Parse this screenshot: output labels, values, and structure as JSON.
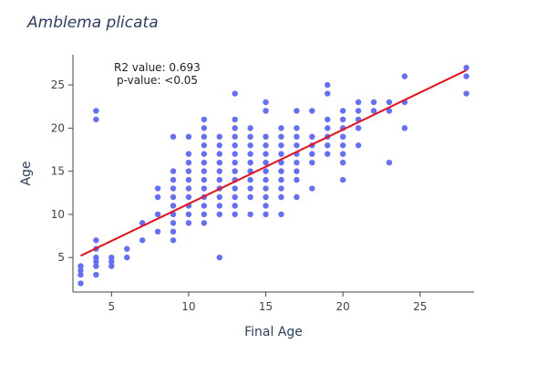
{
  "chart_data": {
    "type": "scatter",
    "title": "Amblema plicata",
    "xlabel": "Final Age",
    "ylabel": "Age",
    "xlim": [
      2.5,
      28.5
    ],
    "ylim": [
      1,
      28.5
    ],
    "xticks": [
      5,
      10,
      15,
      20,
      25
    ],
    "yticks": [
      5,
      10,
      15,
      20,
      25
    ],
    "grid": false,
    "marker_color": "#636efa",
    "annotations": [
      "R2 value: 0.693",
      "p-value: <0.05"
    ],
    "trendline": {
      "color": "#e8101a",
      "x": [
        3,
        28
      ],
      "y": [
        5.2,
        26.7
      ]
    },
    "points": [
      [
        3,
        2
      ],
      [
        3,
        3
      ],
      [
        3,
        3.5
      ],
      [
        3,
        4
      ],
      [
        4,
        3
      ],
      [
        4,
        4
      ],
      [
        4,
        4.5
      ],
      [
        4,
        5
      ],
      [
        4,
        6
      ],
      [
        4,
        7
      ],
      [
        4,
        21
      ],
      [
        4,
        22
      ],
      [
        5,
        4
      ],
      [
        5,
        4.5
      ],
      [
        5,
        5
      ],
      [
        6,
        5
      ],
      [
        6,
        6
      ],
      [
        7,
        7
      ],
      [
        7,
        9
      ],
      [
        8,
        8
      ],
      [
        8,
        10
      ],
      [
        8,
        12
      ],
      [
        8,
        13
      ],
      [
        9,
        7
      ],
      [
        9,
        8
      ],
      [
        9,
        9
      ],
      [
        9,
        10
      ],
      [
        9,
        11
      ],
      [
        9,
        12
      ],
      [
        9,
        13
      ],
      [
        9,
        14
      ],
      [
        9,
        15
      ],
      [
        9,
        19
      ],
      [
        10,
        9
      ],
      [
        10,
        10
      ],
      [
        10,
        11
      ],
      [
        10,
        12
      ],
      [
        10,
        13
      ],
      [
        10,
        14
      ],
      [
        10,
        15
      ],
      [
        10,
        16
      ],
      [
        10,
        17
      ],
      [
        10,
        19
      ],
      [
        11,
        9
      ],
      [
        11,
        10
      ],
      [
        11,
        11
      ],
      [
        11,
        12
      ],
      [
        11,
        13
      ],
      [
        11,
        14
      ],
      [
        11,
        15
      ],
      [
        11,
        16
      ],
      [
        11,
        17
      ],
      [
        11,
        18
      ],
      [
        11,
        19
      ],
      [
        11,
        20
      ],
      [
        11,
        21
      ],
      [
        12,
        5
      ],
      [
        12,
        10
      ],
      [
        12,
        11
      ],
      [
        12,
        12
      ],
      [
        12,
        13
      ],
      [
        12,
        14
      ],
      [
        12,
        15
      ],
      [
        12,
        16
      ],
      [
        12,
        17
      ],
      [
        12,
        18
      ],
      [
        12,
        19
      ],
      [
        13,
        10
      ],
      [
        13,
        11
      ],
      [
        13,
        12
      ],
      [
        13,
        13
      ],
      [
        13,
        14
      ],
      [
        13,
        15
      ],
      [
        13,
        16
      ],
      [
        13,
        17
      ],
      [
        13,
        18
      ],
      [
        13,
        19
      ],
      [
        13,
        20
      ],
      [
        13,
        21
      ],
      [
        13,
        24
      ],
      [
        14,
        10
      ],
      [
        14,
        12
      ],
      [
        14,
        13
      ],
      [
        14,
        14
      ],
      [
        14,
        15
      ],
      [
        14,
        16
      ],
      [
        14,
        17
      ],
      [
        14,
        18
      ],
      [
        14,
        19
      ],
      [
        14,
        20
      ],
      [
        15,
        10
      ],
      [
        15,
        11
      ],
      [
        15,
        12
      ],
      [
        15,
        13
      ],
      [
        15,
        14
      ],
      [
        15,
        15
      ],
      [
        15,
        16
      ],
      [
        15,
        17
      ],
      [
        15,
        18
      ],
      [
        15,
        19
      ],
      [
        15,
        22
      ],
      [
        15,
        23
      ],
      [
        16,
        10
      ],
      [
        16,
        12
      ],
      [
        16,
        13
      ],
      [
        16,
        14
      ],
      [
        16,
        15
      ],
      [
        16,
        16
      ],
      [
        16,
        17
      ],
      [
        16,
        18
      ],
      [
        16,
        19
      ],
      [
        16,
        20
      ],
      [
        17,
        12
      ],
      [
        17,
        14
      ],
      [
        17,
        15
      ],
      [
        17,
        16
      ],
      [
        17,
        17
      ],
      [
        17,
        18
      ],
      [
        17,
        19
      ],
      [
        17,
        20
      ],
      [
        17,
        22
      ],
      [
        18,
        13
      ],
      [
        18,
        16
      ],
      [
        18,
        17
      ],
      [
        18,
        18
      ],
      [
        18,
        19
      ],
      [
        18,
        22
      ],
      [
        19,
        17
      ],
      [
        19,
        18
      ],
      [
        19,
        19
      ],
      [
        19,
        20
      ],
      [
        19,
        21
      ],
      [
        19,
        24
      ],
      [
        19,
        25
      ],
      [
        20,
        14
      ],
      [
        20,
        16
      ],
      [
        20,
        17
      ],
      [
        20,
        18
      ],
      [
        20,
        19
      ],
      [
        20,
        20
      ],
      [
        20,
        21
      ],
      [
        20,
        22
      ],
      [
        21,
        18
      ],
      [
        21,
        20
      ],
      [
        21,
        21
      ],
      [
        21,
        22
      ],
      [
        21,
        23
      ],
      [
        22,
        22
      ],
      [
        22,
        23
      ],
      [
        23,
        16
      ],
      [
        23,
        22
      ],
      [
        23,
        23
      ],
      [
        24,
        20
      ],
      [
        24,
        23
      ],
      [
        24,
        26
      ],
      [
        28,
        24
      ],
      [
        28,
        26
      ],
      [
        28,
        27
      ]
    ]
  }
}
